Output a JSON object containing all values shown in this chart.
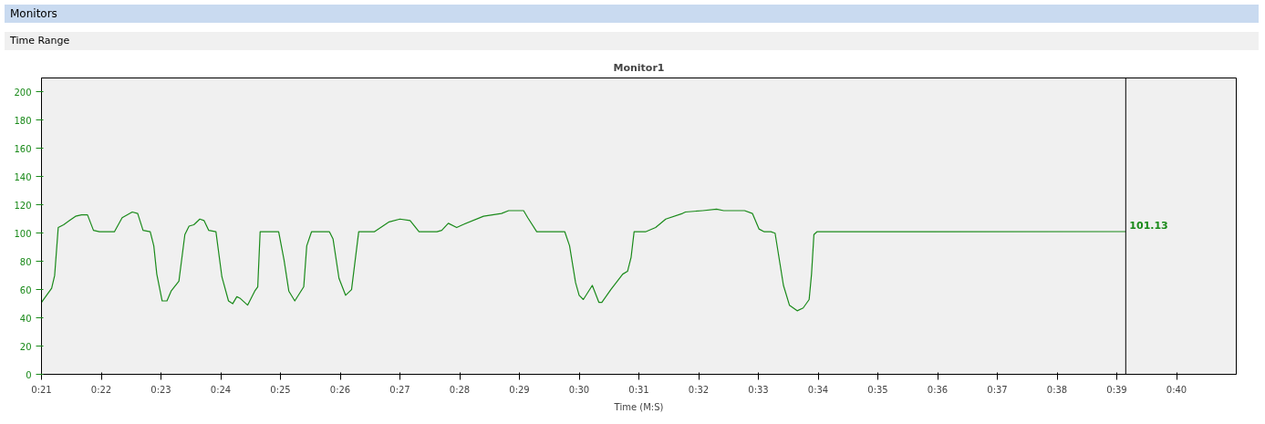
{
  "chart_data": {
    "type": "line",
    "title": "Monitor1",
    "xlabel": "Time (M:S)",
    "annotations": [
      "Monitors",
      "Time Range",
      {
        "text": "101.13",
        "x": 39.15,
        "y": 101.13
      }
    ],
    "xlim": [
      21,
      41
    ],
    "ylim": [
      0,
      210
    ],
    "xticks": [
      {
        "value": 21,
        "label": "0:21"
      },
      {
        "value": 22,
        "label": "0:22"
      },
      {
        "value": 23,
        "label": "0:23"
      },
      {
        "value": 24,
        "label": "0:24"
      },
      {
        "value": 25,
        "label": "0:25"
      },
      {
        "value": 26,
        "label": "0:26"
      },
      {
        "value": 27,
        "label": "0:27"
      },
      {
        "value": 28,
        "label": "0:28"
      },
      {
        "value": 29,
        "label": "0:29"
      },
      {
        "value": 30,
        "label": "0:30"
      },
      {
        "value": 31,
        "label": "0:31"
      },
      {
        "value": 32,
        "label": "0:32"
      },
      {
        "value": 33,
        "label": "0:33"
      },
      {
        "value": 34,
        "label": "0:34"
      },
      {
        "value": 35,
        "label": "0:35"
      },
      {
        "value": 36,
        "label": "0:36"
      },
      {
        "value": 37,
        "label": "0:37"
      },
      {
        "value": 38,
        "label": "0:38"
      },
      {
        "value": 39,
        "label": "0:39"
      },
      {
        "value": 40,
        "label": "0:40"
      }
    ],
    "yticks": [
      0,
      20,
      40,
      60,
      80,
      100,
      120,
      140,
      160,
      180,
      200
    ],
    "grid": false,
    "marker": "none",
    "line_style": "solid",
    "ref_lines": [
      {
        "axis": "x",
        "value": 39.15,
        "label": null,
        "color": "#000000"
      }
    ],
    "series": [
      {
        "color": "#1a8a1a",
        "x": [
          21.0,
          21.17,
          21.22,
          21.28,
          21.37,
          21.47,
          21.57,
          21.67,
          21.77,
          21.87,
          21.97,
          22.22,
          22.35,
          22.52,
          22.61,
          22.7,
          22.82,
          22.88,
          22.93,
          23.02,
          23.1,
          23.17,
          23.3,
          23.4,
          23.47,
          23.55,
          23.65,
          23.72,
          23.8,
          23.92,
          24.02,
          24.13,
          24.2,
          24.27,
          24.32,
          24.45,
          24.57,
          24.62,
          24.66,
          24.97,
          25.06,
          25.14,
          25.24,
          25.39,
          25.44,
          25.52,
          25.82,
          25.88,
          25.98,
          26.09,
          26.19,
          26.31,
          26.57,
          26.82,
          27.0,
          27.17,
          27.32,
          27.62,
          27.7,
          27.81,
          27.95,
          28.05,
          28.4,
          28.7,
          28.82,
          29.07,
          29.14,
          29.29,
          29.76,
          29.84,
          29.94,
          30.0,
          30.07,
          30.22,
          30.33,
          30.38,
          30.53,
          30.73,
          30.81,
          30.87,
          30.92,
          31.11,
          31.28,
          31.45,
          31.73,
          31.78,
          32.07,
          32.3,
          32.42,
          32.77,
          32.9,
          33.01,
          33.1,
          33.21,
          33.28,
          33.42,
          33.52,
          33.65,
          33.75,
          33.85,
          33.89,
          33.93,
          33.98,
          39.15
        ],
        "values": [
          51,
          61,
          70,
          104,
          106,
          109,
          112,
          113,
          113,
          102,
          101,
          101,
          111,
          115,
          114,
          102,
          101,
          91,
          71,
          52,
          52,
          59,
          66,
          99,
          105,
          106,
          110,
          109,
          102,
          101,
          69,
          52,
          50,
          55,
          54,
          49,
          59,
          62,
          101,
          101,
          81,
          59,
          52,
          62,
          91,
          101,
          101,
          96,
          68,
          56,
          60,
          101,
          101,
          108,
          110,
          109,
          101,
          101,
          102,
          107,
          104,
          106,
          112,
          114,
          116,
          116,
          111,
          101,
          101,
          91,
          65,
          56,
          53,
          63,
          51,
          51,
          60,
          71,
          73,
          83,
          101,
          101,
          104,
          110,
          114,
          115,
          116,
          117,
          116,
          116,
          114,
          103,
          101,
          101,
          100,
          63,
          49,
          45,
          47,
          53,
          71,
          99,
          101,
          101.13
        ]
      }
    ]
  }
}
